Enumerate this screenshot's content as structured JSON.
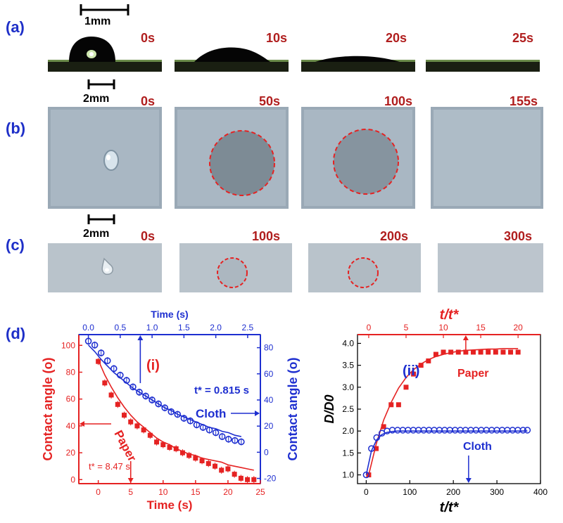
{
  "panels": {
    "a": {
      "label": "(a)",
      "scale": "1mm",
      "times": [
        "0s",
        "10s",
        "20s",
        "25s"
      ]
    },
    "b": {
      "label": "(b)",
      "scale": "2mm",
      "times": [
        "0s",
        "50s",
        "100s",
        "155s"
      ]
    },
    "c": {
      "label": "(c)",
      "scale": "2mm",
      "times": [
        "0s",
        "100s",
        "200s",
        "300s"
      ]
    },
    "d": {
      "label": "(d)"
    }
  },
  "colors": {
    "paper": "#e52222",
    "cloth": "#1e2fd0",
    "timeText": "#b01e1e",
    "panelLabel": "#1e2fc8"
  },
  "chart_data": [
    {
      "type": "scatter",
      "panel": "(i)",
      "xlabel": "Time (s)",
      "x2label": "Time (s)",
      "ylabel": "Contact angle (o)",
      "y2label": "Contact angle (o)",
      "xlim": [
        -3,
        25
      ],
      "ylim": [
        -3,
        108
      ],
      "x2lim": [
        -0.15,
        2.7
      ],
      "y2lim": [
        -24,
        90
      ],
      "xticks": [
        0,
        5,
        10,
        15,
        20,
        25
      ],
      "yticks": [
        0,
        20,
        40,
        60,
        80,
        100
      ],
      "x2ticks": [
        0.0,
        0.5,
        1.0,
        1.5,
        2.0,
        2.5
      ],
      "y2ticks": [
        -20,
        0,
        20,
        40,
        60,
        80
      ],
      "annotations": [
        "(i)",
        "t* = 8.47 s",
        "t* = 0.815 s"
      ],
      "series": [
        {
          "name": "Paper",
          "axis": "bottom-left",
          "x": [
            0,
            1,
            2,
            3,
            4,
            5,
            6,
            7,
            8,
            9,
            10,
            11,
            12,
            13,
            14,
            15,
            16,
            17,
            18,
            19,
            20,
            21,
            22,
            23,
            24
          ],
          "y": [
            88,
            72,
            63,
            56,
            48,
            43,
            40,
            37,
            33,
            28,
            26,
            24,
            23,
            20,
            18,
            16,
            14,
            12,
            10,
            7,
            8,
            4,
            1,
            0,
            0
          ],
          "fit": [
            89,
            78,
            69,
            61,
            54,
            48,
            43,
            39,
            35,
            31,
            28,
            26,
            23,
            21,
            19,
            18,
            16,
            15,
            14,
            13,
            11,
            10,
            9,
            8,
            7
          ]
        },
        {
          "name": "Cloth",
          "axis": "top-right",
          "x": [
            0.0,
            0.1,
            0.2,
            0.3,
            0.4,
            0.5,
            0.6,
            0.7,
            0.8,
            0.9,
            1.0,
            1.1,
            1.2,
            1.3,
            1.4,
            1.5,
            1.6,
            1.7,
            1.8,
            1.9,
            2.0,
            2.1,
            2.2,
            2.3,
            2.4
          ],
          "y": [
            85,
            82,
            76,
            70,
            64,
            59,
            55,
            50,
            46,
            43,
            40,
            37,
            34,
            31,
            29,
            26,
            24,
            21,
            19,
            17,
            15,
            12,
            10,
            9,
            8
          ],
          "fit": [
            82,
            77,
            71,
            66,
            61,
            57,
            53,
            49,
            46,
            43,
            40,
            37,
            34,
            32,
            29,
            27,
            25,
            23,
            21,
            19,
            18,
            16,
            15,
            13,
            12
          ]
        }
      ]
    },
    {
      "type": "scatter",
      "panel": "(ii)",
      "xlabel": "t/t*",
      "x2label": "t/t*",
      "ylabel": "D/D0",
      "xlim": [
        -20,
        400
      ],
      "ylim": [
        0.8,
        4.2
      ],
      "x2lim": [
        -1.5,
        23
      ],
      "xticks": [
        0,
        100,
        200,
        300,
        400
      ],
      "yticks": [
        1.0,
        1.5,
        2.0,
        2.5,
        3.0,
        3.5,
        4.0
      ],
      "x2ticks": [
        0,
        5,
        10,
        15,
        20
      ],
      "series": [
        {
          "name": "Paper",
          "axis": "top-left",
          "x": [
            0,
            1,
            2,
            3,
            4,
            5,
            6,
            7,
            8,
            9,
            10,
            11,
            12,
            13,
            14,
            15,
            16,
            17,
            18,
            19,
            20
          ],
          "y": [
            1.0,
            1.6,
            2.1,
            2.6,
            2.6,
            3.0,
            3.3,
            3.5,
            3.6,
            3.75,
            3.8,
            3.8,
            3.8,
            3.8,
            3.8,
            3.8,
            3.8,
            3.8,
            3.8,
            3.8,
            3.8
          ],
          "fit": [
            1.0,
            1.7,
            2.25,
            2.65,
            2.98,
            3.22,
            3.4,
            3.53,
            3.63,
            3.7,
            3.75,
            3.79,
            3.82,
            3.84,
            3.85,
            3.86,
            3.87,
            3.87,
            3.88,
            3.88,
            3.88
          ]
        },
        {
          "name": "Cloth",
          "axis": "bottom-left",
          "x": [
            0,
            12,
            24,
            36,
            48,
            60,
            72,
            84,
            96,
            108,
            120,
            132,
            144,
            156,
            168,
            180,
            192,
            204,
            216,
            228,
            240,
            252,
            264,
            276,
            288,
            300,
            312,
            324,
            336,
            348,
            360,
            370
          ],
          "y": [
            1.0,
            1.6,
            1.85,
            1.95,
            2.0,
            2.02,
            2.02,
            2.02,
            2.02,
            2.02,
            2.02,
            2.02,
            2.02,
            2.02,
            2.02,
            2.02,
            2.02,
            2.02,
            2.02,
            2.02,
            2.02,
            2.02,
            2.02,
            2.02,
            2.02,
            2.02,
            2.02,
            2.02,
            2.02,
            2.02,
            2.02,
            2.02
          ],
          "fit": [
            1.0,
            1.55,
            1.8,
            1.92,
            1.97,
            1.99,
            2.0,
            2.0,
            2.0,
            2.0,
            2.0,
            2.0,
            2.0,
            2.0,
            2.0,
            2.0,
            2.0,
            2.0,
            2.0,
            2.0,
            2.0,
            2.0,
            2.0,
            2.0,
            2.0,
            2.0,
            2.0,
            2.0,
            2.0,
            2.0,
            2.0,
            2.0
          ]
        }
      ]
    }
  ]
}
